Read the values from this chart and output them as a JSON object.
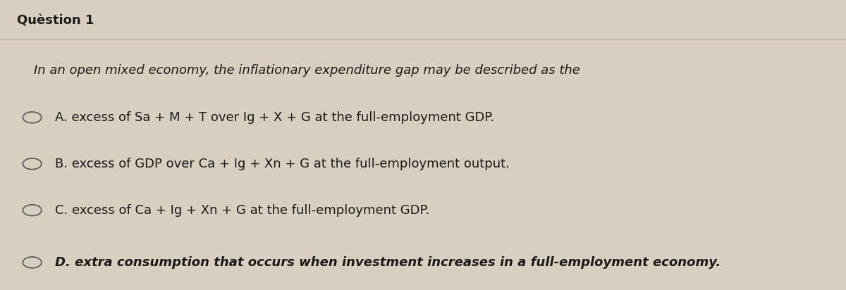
{
  "title": "Quèstion 1",
  "title_fontsize": 13,
  "bg_color": "#d8cfc0",
  "box_color": "#e2d9c8",
  "question_text": "In an open mixed economy, the inflationary expenditure gap may be described as the",
  "options": [
    "A. excess of Sa + M + T over Ig + X + G at the full-employment GDP.",
    "B. excess of GDP over Ca + Ig + Xn + G at the full-employment output.",
    "C. excess of Ca + Ig + Xn + G at the full-employment GDP.",
    "D. extra consumption that occurs when investment increases in a full-employment economy."
  ],
  "option_fontsize": 13,
  "question_fontsize": 13,
  "text_color": "#1a1a1a",
  "circle_color": "#555555",
  "line_color": "#aaaaaa"
}
